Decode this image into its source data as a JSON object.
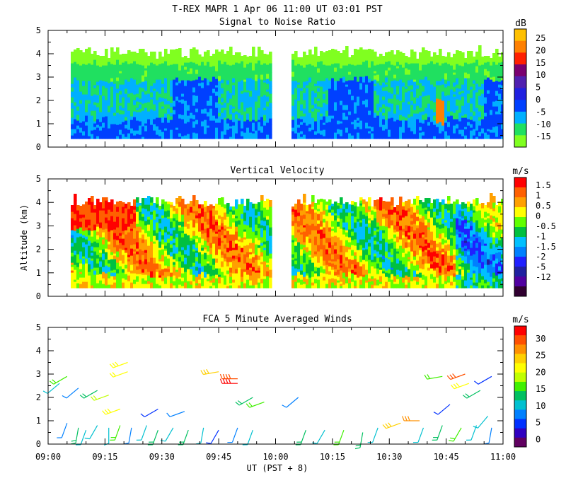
{
  "header": {
    "title": "T-REX   MAPR   1 Apr 06   11:00 UT   03:01   PST"
  },
  "colors": {
    "axis": "#000000",
    "background": "#ffffff"
  },
  "chart_data": [
    {
      "type": "heatmap",
      "title": "Signal to Noise Ratio",
      "units": "dB",
      "ylim": [
        0,
        5
      ],
      "y_ticks": [
        "0",
        "1",
        "2",
        "3",
        "4",
        "5"
      ],
      "colorbar_labels": [
        "25",
        "20",
        "15",
        "10",
        "5",
        "0",
        "-5",
        "-10",
        "-15"
      ],
      "colorbar_colors": [
        "#ffc000",
        "#ff8000",
        "#ff2000",
        "#7a0070",
        "#5020b0",
        "#2020e0",
        "#0040ff",
        "#00b0ff",
        "#20e060",
        "#80ff20"
      ],
      "data_gap_utc": [
        "09:59",
        "10:04"
      ]
    },
    {
      "type": "heatmap",
      "title": "Vertical Velocity",
      "units": "m/s",
      "ylabel": "Altitude (km)",
      "ylim": [
        0,
        5
      ],
      "y_ticks": [
        "0",
        "1",
        "2",
        "3",
        "4",
        "5"
      ],
      "colorbar_labels": [
        "1.5",
        "1",
        "0.5",
        "0",
        "-0.5",
        "-1",
        "-1.5",
        "-2",
        "-5",
        "-12"
      ],
      "colorbar_colors": [
        "#ff0000",
        "#ff6000",
        "#ffa000",
        "#ffff00",
        "#60ff00",
        "#00c040",
        "#00c0ff",
        "#0080ff",
        "#2020ff",
        "#2020a0",
        "#5000a0",
        "#300030"
      ],
      "data_gap_utc": [
        "09:59",
        "10:04"
      ]
    },
    {
      "type": "scatter",
      "title": "FCA 5 Minute Averaged Winds",
      "units": "m/s",
      "ylim": [
        0,
        5
      ],
      "y_ticks": [
        "0",
        "1",
        "2",
        "3",
        "4",
        "5"
      ],
      "colorbar_labels": [
        "30",
        "25",
        "20",
        "15",
        "10",
        "5",
        "0"
      ],
      "colorbar_colors": [
        "#ff0000",
        "#ff5000",
        "#ff9000",
        "#ffd000",
        "#ffff00",
        "#c0ff00",
        "#40f000",
        "#00c060",
        "#00c0d0",
        "#0080ff",
        "#0030ff",
        "#3000c0",
        "#600060"
      ],
      "xlabel": "UT  (PST + 8)",
      "x_ticks": [
        "09:00",
        "09:15",
        "09:30",
        "09:45",
        "10:00",
        "10:15",
        "10:30",
        "10:45",
        "11:00"
      ],
      "xlim_utc": [
        "09:00",
        "11:00"
      ],
      "barbs": [
        {
          "t": 5,
          "alt": 0.9,
          "spd": 8,
          "dir": 200
        },
        {
          "t": 8,
          "alt": 0.7,
          "spd": 12,
          "dir": 190
        },
        {
          "t": 10,
          "alt": 0.6,
          "spd": 10,
          "dir": 200
        },
        {
          "t": 13,
          "alt": 0.8,
          "spd": 9,
          "dir": 210
        },
        {
          "t": 16,
          "alt": 0.7,
          "spd": 11,
          "dir": 180
        },
        {
          "t": 19,
          "alt": 0.8,
          "spd": 14,
          "dir": 200
        },
        {
          "t": 22,
          "alt": 0.7,
          "spd": 8,
          "dir": 190
        },
        {
          "t": 26,
          "alt": 0.8,
          "spd": 10,
          "dir": 200
        },
        {
          "t": 29,
          "alt": 0.6,
          "spd": 12,
          "dir": 200
        },
        {
          "t": 33,
          "alt": 0.7,
          "spd": 9,
          "dir": 210
        },
        {
          "t": 37,
          "alt": 0.6,
          "spd": 13,
          "dir": 200
        },
        {
          "t": 41,
          "alt": 0.7,
          "spd": 10,
          "dir": 190
        },
        {
          "t": 45,
          "alt": 0.6,
          "spd": 6,
          "dir": 210
        },
        {
          "t": 50,
          "alt": 0.7,
          "spd": 8,
          "dir": 200
        },
        {
          "t": 54,
          "alt": 0.6,
          "spd": 11,
          "dir": 200
        },
        {
          "t": 68,
          "alt": 0.6,
          "spd": 12,
          "dir": 200
        },
        {
          "t": 73,
          "alt": 0.6,
          "spd": 10,
          "dir": 210
        },
        {
          "t": 78,
          "alt": 0.6,
          "spd": 14,
          "dir": 200
        },
        {
          "t": 83,
          "alt": 0.5,
          "spd": 13,
          "dir": 190
        },
        {
          "t": 87,
          "alt": 0.7,
          "spd": 11,
          "dir": 200
        },
        {
          "t": 93,
          "alt": 0.9,
          "spd": 22,
          "dir": 250
        },
        {
          "t": 99,
          "alt": 0.7,
          "spd": 9,
          "dir": 200
        },
        {
          "t": 104,
          "alt": 0.8,
          "spd": 12,
          "dir": 200
        },
        {
          "t": 109,
          "alt": 0.7,
          "spd": 14,
          "dir": 210
        },
        {
          "t": 113,
          "alt": 0.8,
          "spd": 10,
          "dir": 200
        },
        {
          "t": 117,
          "alt": 0.7,
          "spd": 8,
          "dir": 190
        },
        {
          "t": 3,
          "alt": 2.6,
          "spd": 10,
          "dir": 230
        },
        {
          "t": 5,
          "alt": 2.9,
          "spd": 14,
          "dir": 240
        },
        {
          "t": 8,
          "alt": 2.4,
          "spd": 7,
          "dir": 230
        },
        {
          "t": 13,
          "alt": 2.3,
          "spd": 12,
          "dir": 240
        },
        {
          "t": 16,
          "alt": 2.1,
          "spd": 17,
          "dir": 250
        },
        {
          "t": 19,
          "alt": 1.5,
          "spd": 20,
          "dir": 250
        },
        {
          "t": 21,
          "alt": 3.5,
          "spd": 21,
          "dir": 250
        },
        {
          "t": 21,
          "alt": 3.1,
          "spd": 19,
          "dir": 250
        },
        {
          "t": 29,
          "alt": 1.5,
          "spd": 6,
          "dir": 240
        },
        {
          "t": 36,
          "alt": 1.4,
          "spd": 8,
          "dir": 250
        },
        {
          "t": 45,
          "alt": 3.1,
          "spd": 23,
          "dir": 260
        },
        {
          "t": 50,
          "alt": 2.8,
          "spd": 28,
          "dir": 270
        },
        {
          "t": 50,
          "alt": 2.6,
          "spd": 29,
          "dir": 270
        },
        {
          "t": 54,
          "alt": 2.0,
          "spd": 13,
          "dir": 240
        },
        {
          "t": 57,
          "alt": 1.8,
          "spd": 16,
          "dir": 250
        },
        {
          "t": 66,
          "alt": 2.0,
          "spd": 7,
          "dir": 230
        },
        {
          "t": 98,
          "alt": 1.0,
          "spd": 24,
          "dir": 270
        },
        {
          "t": 104,
          "alt": 2.9,
          "spd": 15,
          "dir": 260
        },
        {
          "t": 106,
          "alt": 1.7,
          "spd": 5,
          "dir": 230
        },
        {
          "t": 110,
          "alt": 3.0,
          "spd": 27,
          "dir": 250
        },
        {
          "t": 111,
          "alt": 2.6,
          "spd": 21,
          "dir": 250
        },
        {
          "t": 114,
          "alt": 2.3,
          "spd": 12,
          "dir": 240
        },
        {
          "t": 117,
          "alt": 2.9,
          "spd": 6,
          "dir": 240
        },
        {
          "t": 116,
          "alt": 1.2,
          "spd": 10,
          "dir": 220
        }
      ]
    }
  ]
}
